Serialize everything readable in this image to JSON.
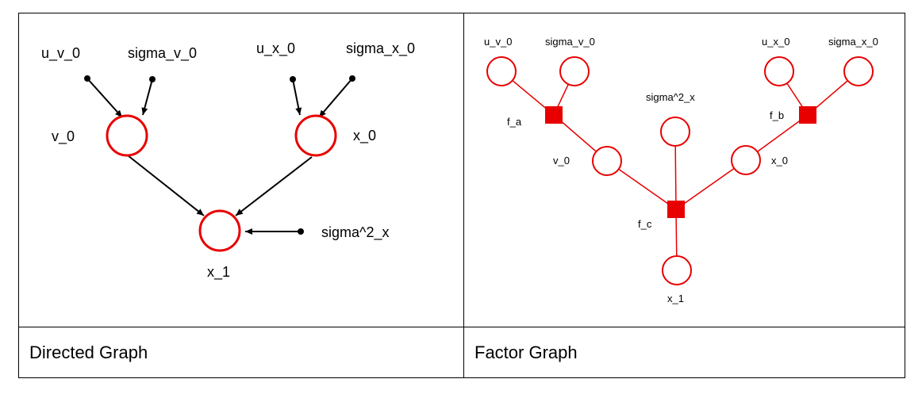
{
  "directed_graph": {
    "caption": "Directed Graph",
    "nodes": {
      "v_0": "v_0",
      "x_0": "x_0",
      "x_1": "x_1"
    },
    "params": {
      "u_v_0": "u_v_0",
      "sigma_v_0": "sigma_v_0",
      "u_x_0": "u_x_0",
      "sigma_x_0": "sigma_x_0",
      "sigma2_x": "sigma^2_x"
    }
  },
  "factor_graph": {
    "caption": "Factor Graph",
    "variables": {
      "u_v_0": "u_v_0",
      "sigma_v_0": "sigma_v_0",
      "u_x_0": "u_x_0",
      "sigma_x_0": "sigma_x_0",
      "sigma2_x": "sigma^2_x",
      "v_0": "v_0",
      "x_0": "x_0",
      "x_1": "x_1"
    },
    "factors": {
      "f_a": "f_a",
      "f_b": "f_b",
      "f_c": "f_c"
    }
  },
  "colors": {
    "node": "#e80000",
    "edge": "#000000",
    "factor": "#e80000"
  }
}
